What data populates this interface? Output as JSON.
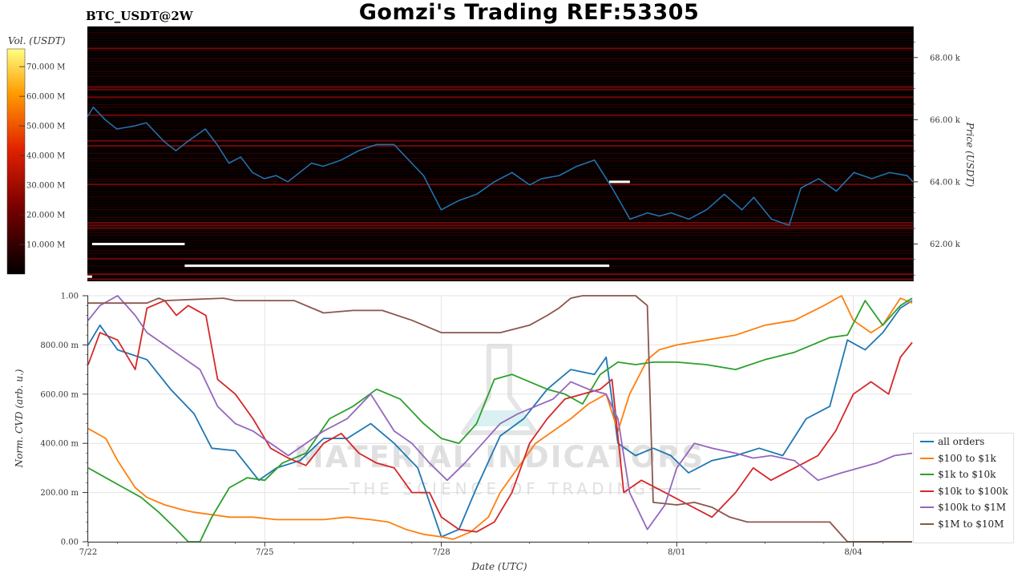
{
  "header": {
    "title": "Gomzi's Trading REF:53305",
    "symbol": "BTC_USDT@2W"
  },
  "watermark": {
    "line1": "MATERIAL INDICATORS",
    "line2": "THE SCIENCE OF TRADING"
  },
  "colorbar": {
    "label": "Vol. (USDT)",
    "ticks": [
      "10.000 M",
      "20.000 M",
      "30.000 M",
      "40.000 M",
      "50.000 M",
      "60.000 M",
      "70.000 M"
    ]
  },
  "chart_data": [
    {
      "type": "heatmap",
      "ylabel": "Price (USDT)",
      "ylim": [
        60800,
        69000
      ],
      "y_ticks": [
        "62.00 k",
        "64.00 k",
        "66.00 k",
        "68.00 k"
      ],
      "y_tick_values": [
        62000,
        64000,
        66000,
        68000
      ],
      "xlim": [
        0,
        14
      ],
      "series": [
        {
          "color": "#1f77b4",
          "x": [
            0,
            0.1,
            0.3,
            0.5,
            0.8,
            1.0,
            1.3,
            1.5,
            1.7,
            2.0,
            2.2,
            2.4,
            2.6,
            2.8,
            3.0,
            3.2,
            3.4,
            3.6,
            3.8,
            4.0,
            4.3,
            4.6,
            4.9,
            5.2,
            5.4,
            5.7,
            6.0,
            6.3,
            6.6,
            6.9,
            7.2,
            7.5,
            7.7,
            8.0,
            8.3,
            8.6,
            8.9,
            9.2,
            9.5,
            9.7,
            9.9,
            10.2,
            10.5,
            10.8,
            11.1,
            11.3,
            11.6,
            11.9,
            12.1,
            12.4,
            12.7,
            13.0,
            13.3,
            13.6,
            13.9,
            14.0
          ],
          "y": [
            66.1,
            66.4,
            66.0,
            65.7,
            65.8,
            65.9,
            65.3,
            65.0,
            65.3,
            65.7,
            65.2,
            64.6,
            64.8,
            64.3,
            64.1,
            64.2,
            64.0,
            64.3,
            64.6,
            64.5,
            64.7,
            65.0,
            65.2,
            65.2,
            64.8,
            64.2,
            63.1,
            63.4,
            63.6,
            64.0,
            64.3,
            63.9,
            64.1,
            64.2,
            64.5,
            64.7,
            63.8,
            62.8,
            63.0,
            62.9,
            63.0,
            62.8,
            63.1,
            63.6,
            63.1,
            63.5,
            62.8,
            62.6,
            63.8,
            64.1,
            63.7,
            64.3,
            64.1,
            64.3,
            64.2,
            64.0
          ]
        }
      ],
      "markers": [
        {
          "x0": 0.08,
          "x1": 1.65,
          "y": 62.0
        },
        {
          "x0": 1.65,
          "x1": 8.85,
          "y": 61.3
        },
        {
          "x0": 0.0,
          "x1": 0.08,
          "y": 60.95
        },
        {
          "x0": 8.85,
          "x1": 9.2,
          "y": 64.0
        }
      ]
    },
    {
      "type": "line",
      "xlabel": "Date (UTC)",
      "ylabel": "Norm. CVD (arb. u.)",
      "ylim": [
        0,
        1
      ],
      "y_ticks": [
        "0.00",
        "200.00 m",
        "400.00 m",
        "600.00 m",
        "800.00 m",
        "1.00"
      ],
      "y_tick_values": [
        0,
        0.2,
        0.4,
        0.6,
        0.8,
        1.0
      ],
      "x_ticks": [
        "7/22",
        "7/25",
        "7/28",
        "8/01",
        "8/04"
      ],
      "x_tick_values": [
        0,
        3,
        6,
        10,
        13
      ],
      "xlim": [
        0,
        14
      ],
      "series": [
        {
          "name": "all orders",
          "color": "#1f77b4",
          "x": [
            0,
            0.2,
            0.5,
            1.0,
            1.4,
            1.8,
            2.1,
            2.5,
            2.9,
            3.2,
            3.6,
            4.0,
            4.4,
            4.8,
            5.2,
            5.6,
            6.0,
            6.3,
            6.6,
            7.0,
            7.4,
            7.8,
            8.2,
            8.6,
            8.8,
            9.0,
            9.3,
            9.6,
            9.9,
            10.2,
            10.6,
            11.0,
            11.4,
            11.8,
            12.2,
            12.6,
            12.9,
            13.2,
            13.5,
            13.8,
            14.0
          ],
          "y": [
            0.8,
            0.88,
            0.78,
            0.74,
            0.62,
            0.52,
            0.38,
            0.37,
            0.25,
            0.3,
            0.33,
            0.42,
            0.42,
            0.48,
            0.4,
            0.3,
            0.02,
            0.05,
            0.22,
            0.43,
            0.5,
            0.62,
            0.7,
            0.68,
            0.75,
            0.4,
            0.35,
            0.38,
            0.35,
            0.28,
            0.33,
            0.35,
            0.38,
            0.35,
            0.5,
            0.55,
            0.82,
            0.78,
            0.85,
            0.95,
            0.98
          ]
        },
        {
          "name": "$100 to $1k",
          "color": "#ff7f0e",
          "x": [
            0,
            0.3,
            0.5,
            0.8,
            1.0,
            1.3,
            1.6,
            1.8,
            2.1,
            2.4,
            2.8,
            3.2,
            3.6,
            4.0,
            4.4,
            4.8,
            5.1,
            5.4,
            5.7,
            6.0,
            6.2,
            6.5,
            6.8,
            7.0,
            7.3,
            7.6,
            7.9,
            8.2,
            8.5,
            8.8,
            9.0,
            9.2,
            9.5,
            9.7,
            10.0,
            10.5,
            11.0,
            11.5,
            12.0,
            12.5,
            12.8,
            13.0,
            13.3,
            13.5,
            13.8,
            14.0
          ],
          "y": [
            0.46,
            0.42,
            0.33,
            0.22,
            0.18,
            0.15,
            0.13,
            0.12,
            0.11,
            0.1,
            0.1,
            0.09,
            0.09,
            0.09,
            0.1,
            0.09,
            0.08,
            0.05,
            0.03,
            0.02,
            0.01,
            0.04,
            0.1,
            0.2,
            0.3,
            0.4,
            0.45,
            0.5,
            0.56,
            0.6,
            0.45,
            0.6,
            0.74,
            0.78,
            0.8,
            0.82,
            0.84,
            0.88,
            0.9,
            0.96,
            1.0,
            0.9,
            0.85,
            0.88,
            0.99,
            0.97
          ]
        },
        {
          "name": "$1k to $10k",
          "color": "#2ca02c",
          "x": [
            0,
            0.3,
            0.6,
            0.9,
            1.2,
            1.5,
            1.7,
            1.9,
            2.1,
            2.4,
            2.7,
            3.0,
            3.3,
            3.7,
            4.1,
            4.5,
            4.9,
            5.3,
            5.7,
            6.0,
            6.3,
            6.6,
            6.9,
            7.2,
            7.5,
            7.8,
            8.1,
            8.4,
            8.7,
            9.0,
            9.3,
            9.6,
            10.0,
            10.5,
            11.0,
            11.5,
            12.0,
            12.3,
            12.6,
            12.9,
            13.2,
            13.5,
            13.8,
            14.0
          ],
          "y": [
            0.3,
            0.26,
            0.22,
            0.18,
            0.12,
            0.05,
            0.0,
            0.0,
            0.1,
            0.22,
            0.26,
            0.25,
            0.32,
            0.36,
            0.5,
            0.55,
            0.62,
            0.58,
            0.48,
            0.42,
            0.4,
            0.48,
            0.66,
            0.68,
            0.65,
            0.62,
            0.6,
            0.56,
            0.68,
            0.73,
            0.72,
            0.73,
            0.73,
            0.72,
            0.7,
            0.74,
            0.77,
            0.8,
            0.83,
            0.84,
            0.98,
            0.88,
            0.96,
            0.99
          ]
        },
        {
          "name": "$10k to $100k",
          "color": "#d62728",
          "x": [
            0,
            0.2,
            0.5,
            0.8,
            1.0,
            1.3,
            1.5,
            1.7,
            2.0,
            2.2,
            2.5,
            2.8,
            3.1,
            3.4,
            3.7,
            4.0,
            4.3,
            4.6,
            4.9,
            5.2,
            5.5,
            5.8,
            6.0,
            6.3,
            6.6,
            6.9,
            7.2,
            7.5,
            7.8,
            8.1,
            8.4,
            8.7,
            8.9,
            9.1,
            9.4,
            9.8,
            10.2,
            10.6,
            11.0,
            11.3,
            11.6,
            12.0,
            12.4,
            12.7,
            13.0,
            13.3,
            13.6,
            13.8,
            14.0
          ],
          "y": [
            0.72,
            0.85,
            0.82,
            0.7,
            0.95,
            0.98,
            0.92,
            0.96,
            0.92,
            0.66,
            0.6,
            0.5,
            0.38,
            0.34,
            0.31,
            0.4,
            0.44,
            0.36,
            0.32,
            0.3,
            0.2,
            0.2,
            0.1,
            0.05,
            0.04,
            0.08,
            0.2,
            0.4,
            0.5,
            0.58,
            0.6,
            0.62,
            0.66,
            0.2,
            0.25,
            0.2,
            0.15,
            0.1,
            0.2,
            0.3,
            0.25,
            0.3,
            0.35,
            0.45,
            0.6,
            0.65,
            0.6,
            0.75,
            0.81
          ]
        },
        {
          "name": "$100k to $1M",
          "color": "#9467bd",
          "x": [
            0,
            0.2,
            0.5,
            0.8,
            1.0,
            1.3,
            1.6,
            1.9,
            2.2,
            2.5,
            2.8,
            3.1,
            3.4,
            3.7,
            4.0,
            4.4,
            4.8,
            5.2,
            5.5,
            5.8,
            6.1,
            6.4,
            6.7,
            7.0,
            7.3,
            7.6,
            7.9,
            8.2,
            8.5,
            8.8,
            9.0,
            9.2,
            9.5,
            9.8,
            10.0,
            10.3,
            10.6,
            11.0,
            11.3,
            11.6,
            12.0,
            12.4,
            12.8,
            13.1,
            13.4,
            13.7,
            14.0
          ],
          "y": [
            0.9,
            0.96,
            1.0,
            0.92,
            0.85,
            0.8,
            0.75,
            0.7,
            0.55,
            0.48,
            0.45,
            0.4,
            0.35,
            0.4,
            0.45,
            0.5,
            0.6,
            0.45,
            0.4,
            0.32,
            0.25,
            0.32,
            0.4,
            0.48,
            0.52,
            0.55,
            0.58,
            0.65,
            0.62,
            0.6,
            0.5,
            0.2,
            0.05,
            0.15,
            0.3,
            0.4,
            0.38,
            0.36,
            0.34,
            0.35,
            0.33,
            0.25,
            0.28,
            0.3,
            0.32,
            0.35,
            0.36
          ]
        },
        {
          "name": "$1M to $10M",
          "color": "#8c564b",
          "x": [
            0,
            1.0,
            1.2,
            1.3,
            2.3,
            2.5,
            2.6,
            3.0,
            3.5,
            4.0,
            4.5,
            5.0,
            5.5,
            6.0,
            6.5,
            7.0,
            7.5,
            7.8,
            8.0,
            8.2,
            8.4,
            8.6,
            8.9,
            9.3,
            9.5,
            9.6,
            10.0,
            10.3,
            10.6,
            10.9,
            11.2,
            11.6,
            12.0,
            12.3,
            12.6,
            12.9,
            13.2,
            13.6,
            14.0
          ],
          "y": [
            0.97,
            0.97,
            0.99,
            0.98,
            0.99,
            0.98,
            0.98,
            0.98,
            0.98,
            0.93,
            0.94,
            0.94,
            0.9,
            0.85,
            0.85,
            0.85,
            0.88,
            0.92,
            0.95,
            0.99,
            1.0,
            1.0,
            1.0,
            1.0,
            0.96,
            0.16,
            0.15,
            0.16,
            0.14,
            0.1,
            0.08,
            0.08,
            0.08,
            0.08,
            0.08,
            0.0,
            0.0,
            0.0,
            0.0
          ]
        }
      ]
    }
  ]
}
